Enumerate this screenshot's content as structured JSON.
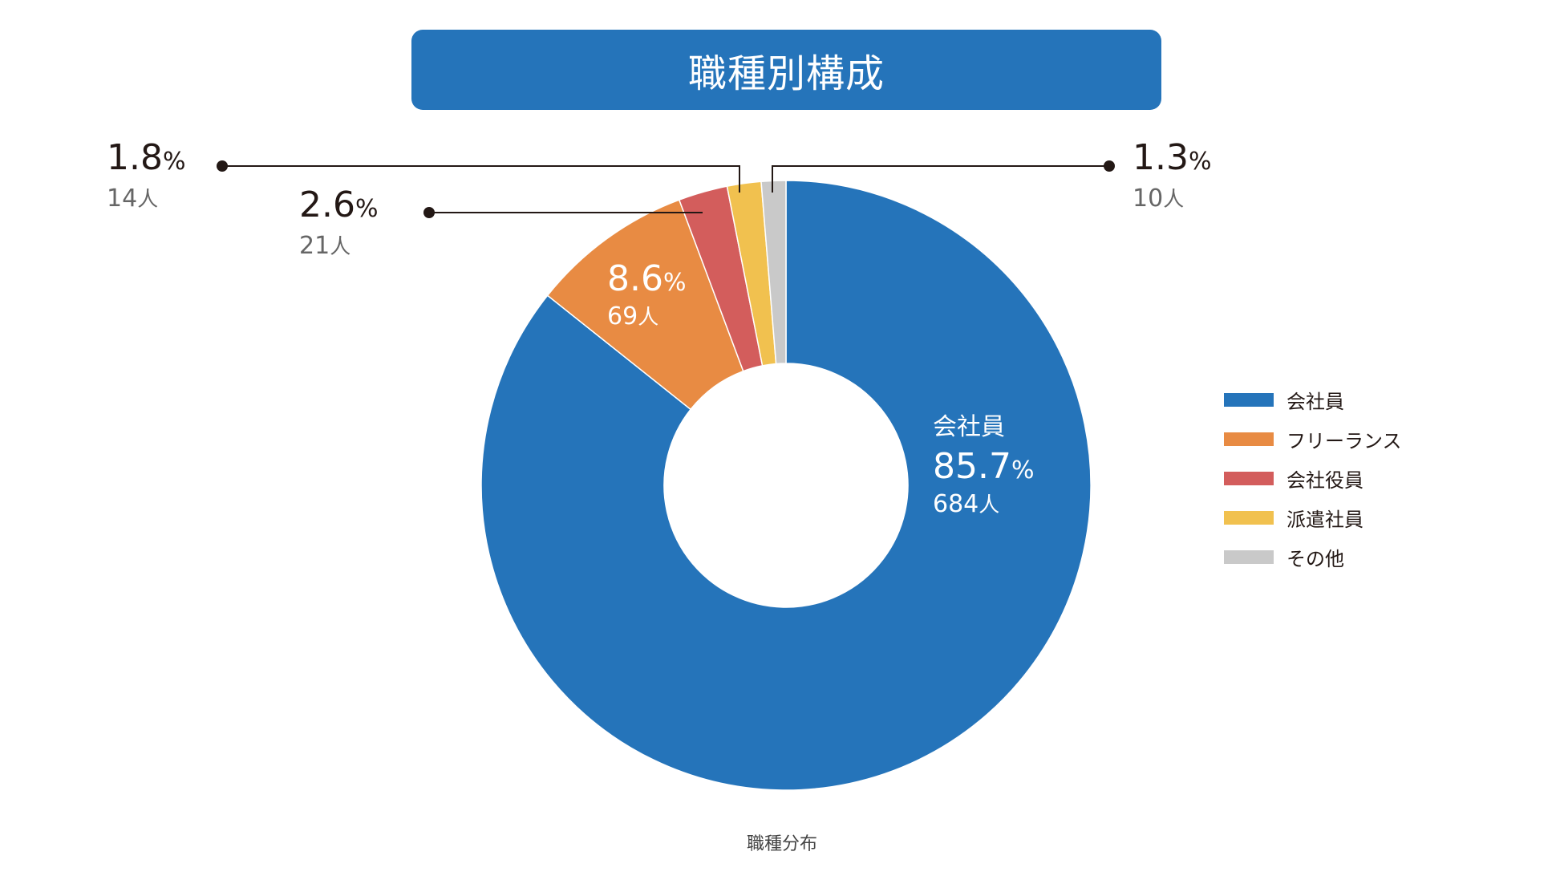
{
  "title": "職種別構成",
  "footer_caption": "職種分布",
  "chart_data": {
    "type": "pie",
    "donut": true,
    "categories": [
      "会社員",
      "フリーランス",
      "会社役員",
      "派遣社員",
      "その他"
    ],
    "values": [
      85.7,
      8.6,
      2.6,
      1.8,
      1.3
    ],
    "counts": [
      684,
      69,
      21,
      14,
      10
    ],
    "colors": [
      "#2574ba",
      "#e88b43",
      "#d35d5c",
      "#f1c14f",
      "#c9c9c9"
    ],
    "legend_placement": "right",
    "unit_percent": "%",
    "unit_people": "人"
  },
  "labels": {
    "kaishain": {
      "category": "会社員",
      "pct": "85.7",
      "sign": "%",
      "count": "684",
      "unit": "人"
    },
    "freelance": {
      "pct": "8.6",
      "sign": "%",
      "count": "69",
      "unit": "人"
    },
    "yakuin": {
      "pct": "2.6",
      "sign": "%",
      "count": "21",
      "unit": "人"
    },
    "haken": {
      "pct": "1.8",
      "sign": "%",
      "count": "14",
      "unit": "人"
    },
    "sonota": {
      "pct": "1.3",
      "sign": "%",
      "count": "10",
      "unit": "人"
    }
  },
  "legend": [
    {
      "label": "会社員",
      "color": "#2574ba"
    },
    {
      "label": "フリーランス",
      "color": "#e88b43"
    },
    {
      "label": "会社役員",
      "color": "#d35d5c"
    },
    {
      "label": "派遣社員",
      "color": "#f1c14f"
    },
    {
      "label": "その他",
      "color": "#c9c9c9"
    }
  ]
}
